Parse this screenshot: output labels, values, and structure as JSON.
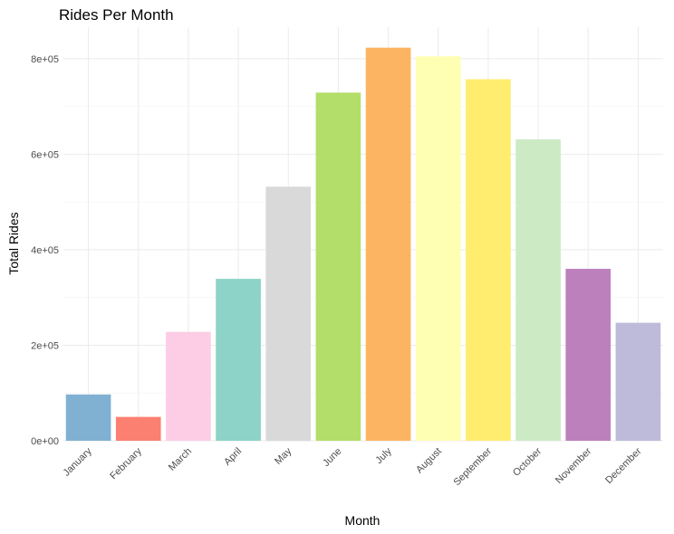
{
  "chart_data": {
    "type": "bar",
    "title": "Rides Per Month",
    "xlabel": "Month",
    "ylabel": "Total Rides",
    "categories": [
      "January",
      "February",
      "March",
      "April",
      "May",
      "June",
      "July",
      "August",
      "September",
      "October",
      "November",
      "December"
    ],
    "values": [
      97000,
      50000,
      228000,
      339000,
      532000,
      729000,
      823000,
      805000,
      757000,
      631000,
      360000,
      247000
    ],
    "colors": [
      "#80B1D3",
      "#FB8072",
      "#FCCDE5",
      "#8DD3C7",
      "#D9D9D9",
      "#B3DE69",
      "#FDB462",
      "#FFFFB3",
      "#FFED6F",
      "#CCEBC5",
      "#BC80BD",
      "#BEBADA"
    ],
    "ylim": [
      0,
      866000
    ],
    "yticks": [
      0,
      200000,
      400000,
      600000,
      800000
    ],
    "ytick_labels": [
      "0e+00",
      "2e+05",
      "4e+05",
      "6e+05",
      "8e+05"
    ],
    "grid": true,
    "legend": "none"
  }
}
